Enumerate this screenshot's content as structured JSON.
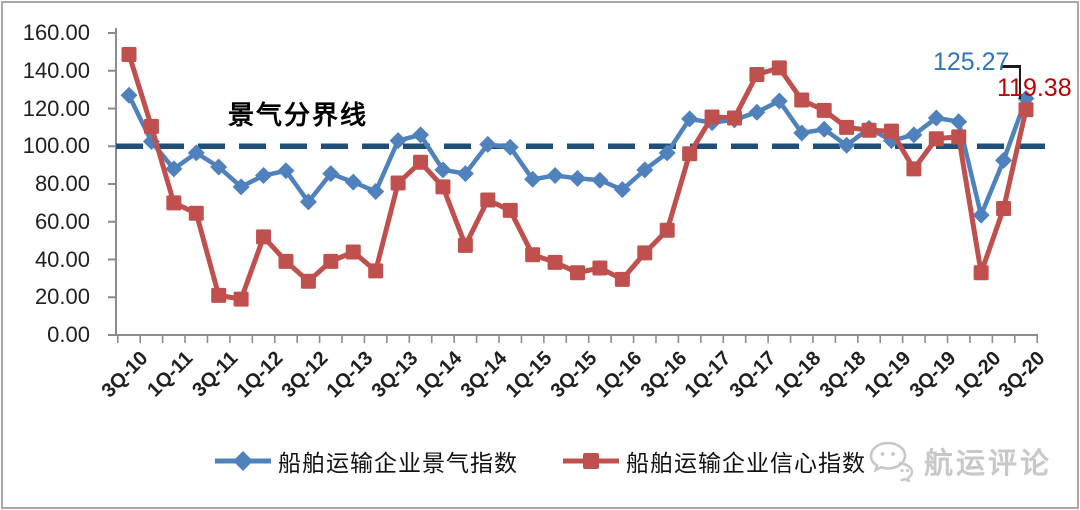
{
  "chart_data": {
    "type": "line",
    "categories": [
      "3Q-10",
      "4Q-10",
      "1Q-11",
      "2Q-11",
      "3Q-11",
      "4Q-11",
      "1Q-12",
      "2Q-12",
      "3Q-12",
      "4Q-12",
      "1Q-13",
      "2Q-13",
      "3Q-13",
      "4Q-13",
      "1Q-14",
      "2Q-14",
      "3Q-14",
      "4Q-14",
      "1Q-15",
      "2Q-15",
      "3Q-15",
      "4Q-15",
      "1Q-16",
      "2Q-16",
      "3Q-16",
      "4Q-16",
      "1Q-17",
      "2Q-17",
      "3Q-17",
      "4Q-17",
      "1Q-18",
      "2Q-18",
      "3Q-18",
      "4Q-18",
      "1Q-19",
      "2Q-19",
      "3Q-19",
      "4Q-19",
      "1Q-20",
      "2Q-20",
      "3Q-20"
    ],
    "x_tick_labels": [
      "3Q-10",
      "1Q-11",
      "3Q-11",
      "1Q-12",
      "3Q-12",
      "1Q-13",
      "3Q-13",
      "1Q-14",
      "3Q-14",
      "1Q-15",
      "3Q-15",
      "1Q-16",
      "3Q-16",
      "1Q-17",
      "3Q-17",
      "1Q-18",
      "3Q-18",
      "1Q-19",
      "3Q-19",
      "1Q-20",
      "3Q-20"
    ],
    "y_tick_labels": [
      "160.00",
      "140.00",
      "120.00",
      "100.00",
      "80.00",
      "60.00",
      "40.00",
      "20.00",
      "0.00"
    ],
    "ylim": [
      0,
      160
    ],
    "ytick_step": 20,
    "grid": false,
    "legend_position": "bottom",
    "series": [
      {
        "name": "船舶运输企业景气指数",
        "color": "#4F81BD",
        "marker": "diamond",
        "values": [
          127.0,
          102.5,
          88.0,
          96.5,
          89.0,
          78.5,
          84.5,
          87.0,
          70.5,
          85.5,
          81.0,
          76.0,
          103.0,
          106.0,
          87.5,
          85.5,
          101.0,
          99.5,
          82.5,
          84.5,
          83.0,
          82.0,
          77.0,
          87.5,
          96.5,
          114.5,
          112.5,
          114.0,
          118.0,
          124.0,
          107.0,
          109.0,
          100.5,
          109.5,
          103.0,
          106.0,
          115.0,
          113.0,
          63.5,
          92.5,
          125.27
        ]
      },
      {
        "name": "船舶运输企业信心指数",
        "color": "#C0504D",
        "marker": "square",
        "values": [
          148.6,
          110.5,
          70.0,
          64.5,
          21.0,
          19.0,
          52.0,
          39.0,
          28.5,
          39.0,
          44.0,
          34.0,
          80.5,
          91.5,
          78.5,
          47.5,
          71.5,
          66.0,
          42.5,
          38.5,
          33.0,
          35.5,
          29.5,
          43.5,
          55.5,
          96.0,
          115.5,
          115.0,
          138.0,
          141.5,
          124.5,
          119.0,
          110.0,
          108.5,
          108.0,
          88.0,
          104.0,
          105.0,
          33.0,
          67.0,
          119.38
        ]
      }
    ],
    "reference_line": {
      "value": 100,
      "label": "景气分界线",
      "color": "#1F4E79"
    },
    "annotations": [
      {
        "text": "125.27",
        "series": "船舶运输企业景气指数",
        "color": "#2E75B6"
      },
      {
        "text": "119.38",
        "series": "船舶运输企业信心指数",
        "color": "#C00000"
      }
    ],
    "axis_color": "#8C8C8C"
  },
  "watermark": {
    "text": "航运评论"
  }
}
